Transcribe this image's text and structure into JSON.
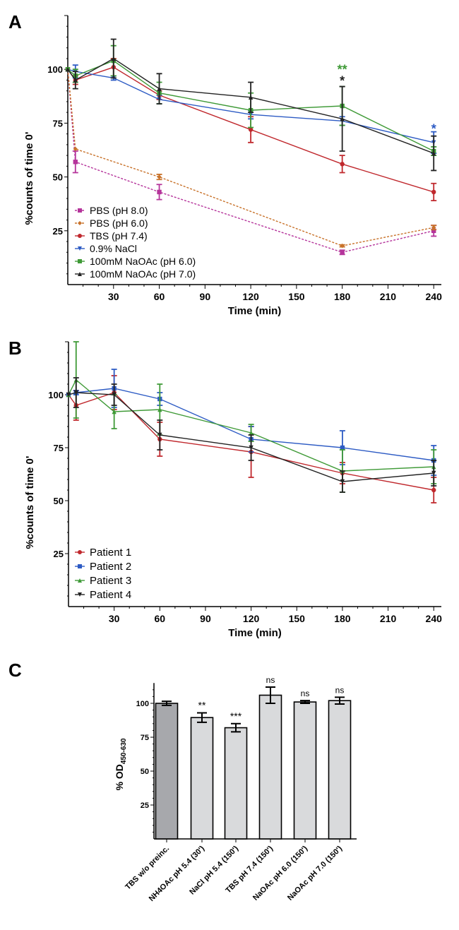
{
  "chart_data": [
    {
      "panel": "A",
      "type": "line",
      "xlabel": "Time (min)",
      "ylabel": "%counts of time 0'",
      "xticks": [
        30,
        60,
        90,
        120,
        150,
        180,
        210,
        240
      ],
      "yticks": [
        25,
        50,
        75,
        100
      ],
      "xlim": [
        0,
        245
      ],
      "ylim": [
        0,
        125
      ],
      "legend": "bottom-left",
      "x": [
        0,
        5,
        30,
        60,
        120,
        180,
        240
      ],
      "series": [
        {
          "name": "PBS (pH 8.0)",
          "color": "#b5349b",
          "marker": "square",
          "dashed": true,
          "values": [
            100,
            57,
            null,
            43,
            null,
            15,
            25
          ],
          "err": [
            0,
            5,
            null,
            3.5,
            null,
            1,
            2.5
          ]
        },
        {
          "name": "PBS (pH 6.0)",
          "color": "#c8722a",
          "marker": "diamond",
          "dashed": true,
          "values": [
            100,
            63,
            null,
            50,
            null,
            18,
            26.5
          ],
          "err": [
            0,
            0,
            null,
            1.2,
            null,
            0.5,
            1
          ]
        },
        {
          "name": "TBS (pH 7.4)",
          "color": "#c0282d",
          "marker": "circle",
          "dashed": false,
          "values": [
            100,
            95,
            101,
            88,
            72,
            56,
            43
          ],
          "err": [
            0,
            2,
            4,
            2,
            6,
            4,
            4
          ]
        },
        {
          "name": "0.9% NaCl",
          "color": "#2d5bc4",
          "marker": "triangle-down",
          "dashed": false,
          "values": [
            100,
            99,
            96,
            86,
            79,
            76,
            66
          ],
          "err": [
            0,
            3,
            1,
            2,
            2,
            2,
            5
          ]
        },
        {
          "name": "100mM NaOAc (pH 6.0)",
          "color": "#3f9a37",
          "marker": "square",
          "dashed": false,
          "values": [
            100,
            97,
            104,
            89,
            81,
            83,
            62
          ],
          "err": [
            0,
            3,
            7,
            5,
            8,
            9,
            2
          ]
        },
        {
          "name": "100mM NaOAc (pH 7.0)",
          "color": "#222222",
          "marker": "triangle-up",
          "dashed": false,
          "values": [
            100,
            95,
            105,
            91,
            87,
            77,
            61
          ],
          "err": [
            0,
            4,
            9,
            7,
            7,
            15,
            8
          ]
        }
      ],
      "annotations": [
        {
          "x": 180,
          "text": "**",
          "color": "#3f9a37"
        },
        {
          "x": 180,
          "text": "*",
          "color": "#222222"
        },
        {
          "x": 240,
          "text": "*",
          "color": "#2d5bc4"
        }
      ]
    },
    {
      "panel": "B",
      "type": "line",
      "xlabel": "Time (min)",
      "ylabel": "%counts of time 0'",
      "xticks": [
        30,
        60,
        90,
        120,
        150,
        180,
        210,
        240
      ],
      "yticks": [
        25,
        50,
        75,
        100
      ],
      "xlim": [
        0,
        245
      ],
      "ylim": [
        0,
        125
      ],
      "legend": "bottom-left",
      "x": [
        0,
        5,
        30,
        60,
        120,
        180,
        240
      ],
      "series": [
        {
          "name": "Patient 1",
          "color": "#c0282d",
          "marker": "circle",
          "values": [
            100,
            95,
            101,
            79,
            73,
            63,
            55
          ],
          "err": [
            0,
            7,
            8,
            8,
            12,
            5,
            6
          ]
        },
        {
          "name": "Patient 2",
          "color": "#2d5bc4",
          "marker": "square",
          "values": [
            100,
            101,
            103,
            98,
            79,
            75,
            69
          ],
          "err": [
            0,
            1,
            9,
            3,
            6,
            8,
            7
          ]
        },
        {
          "name": "Patient 3",
          "color": "#3f9a37",
          "marker": "triangle-up",
          "values": [
            100,
            107,
            92,
            93,
            82,
            64,
            66
          ],
          "err": [
            0,
            18,
            8,
            12,
            4,
            10,
            8
          ]
        },
        {
          "name": "Patient 4",
          "color": "#222222",
          "marker": "triangle-down",
          "values": [
            100,
            101,
            100,
            81,
            75,
            59,
            63
          ],
          "err": [
            0,
            7,
            5,
            7,
            6,
            5,
            6
          ]
        }
      ]
    },
    {
      "panel": "C",
      "type": "bar",
      "ylabel": "% OD",
      "ylabel_sub": "450-630",
      "yticks": [
        25,
        50,
        75,
        100
      ],
      "ylim": [
        0,
        115
      ],
      "categories": [
        "TBS w/o preinc.",
        "NH4OAc pH 5.4 (30')",
        "NaCl pH 5.4 (150')",
        "TBS pH 7.4 (150')",
        "NaOAc pH 6.0 (150')",
        "NaOAc pH 7.0 (150')"
      ],
      "values": [
        100,
        89.5,
        82,
        106,
        101,
        102
      ],
      "err": [
        1.5,
        3.5,
        3,
        6,
        1,
        2.5
      ],
      "labels": [
        "",
        "**",
        "***",
        "ns",
        "ns",
        "ns"
      ],
      "colors": [
        "#a7a8ac",
        "#d9dadc",
        "#d9dadc",
        "#d9dadc",
        "#d9dadc",
        "#d9dadc"
      ]
    }
  ],
  "panels": [
    "A",
    "B",
    "C"
  ]
}
